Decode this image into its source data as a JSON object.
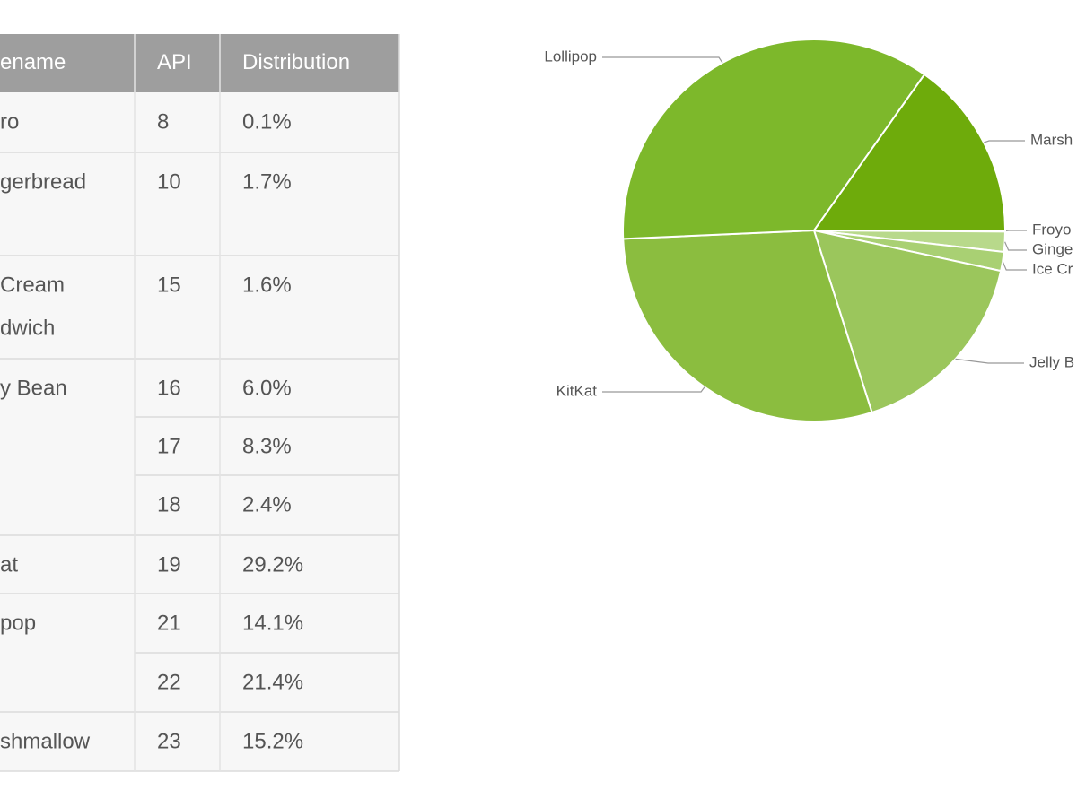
{
  "table": {
    "header": [
      "ename",
      "API",
      "Distribution"
    ],
    "groups": [
      {
        "codename": [
          "ro"
        ],
        "versions": [
          [
            "8",
            "0.1%"
          ]
        ]
      },
      {
        "codename": [
          "gerbread"
        ],
        "versions": [
          [
            "10",
            "1.7%"
          ]
        ]
      },
      {
        "codename": [
          "Cream",
          "dwich"
        ],
        "versions": [
          [
            "15",
            "1.6%"
          ]
        ]
      },
      {
        "codename": [
          "y Bean"
        ],
        "versions": [
          [
            "16",
            "6.0%"
          ],
          [
            "17",
            "8.3%"
          ],
          [
            "18",
            "2.4%"
          ]
        ]
      },
      {
        "codename": [
          "at"
        ],
        "versions": [
          [
            "19",
            "29.2%"
          ]
        ]
      },
      {
        "codename": [
          "pop"
        ],
        "versions": [
          [
            "21",
            "14.1%"
          ],
          [
            "22",
            "21.4%"
          ]
        ]
      },
      {
        "codename": [
          "shmallow"
        ],
        "versions": [
          [
            "23",
            "15.2%"
          ]
        ]
      }
    ]
  },
  "chart_data": {
    "type": "pie",
    "categories": [
      "Froyo",
      "Ginge",
      "Ice Cr",
      "Jelly B",
      "KitKat",
      "Lollipop",
      "Marsh"
    ],
    "values": [
      0.1,
      1.7,
      1.6,
      16.7,
      29.2,
      35.5,
      15.2
    ],
    "colors": [
      "#c8e2a4",
      "#b8d98b",
      "#a9d073",
      "#9bc65c",
      "#8bbd3f",
      "#7db82b",
      "#6eab0b"
    ]
  }
}
